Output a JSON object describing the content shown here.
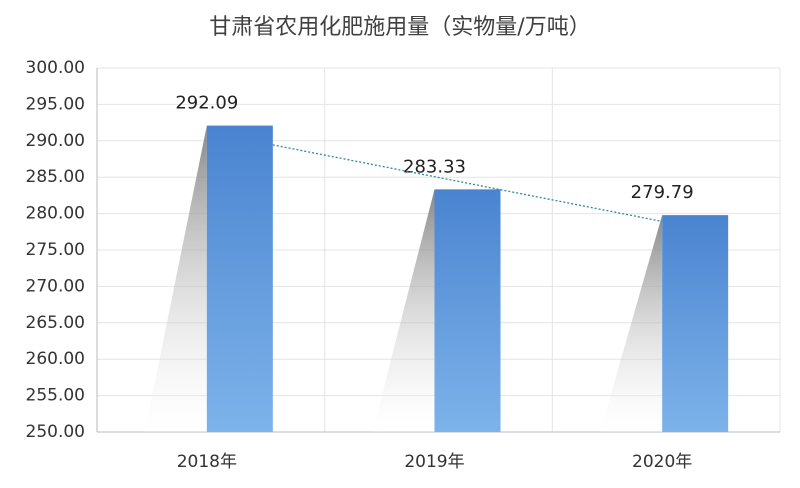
{
  "chart_data": {
    "type": "bar",
    "title": "甘肃省农用化肥施用量（实物量/万吨）",
    "categories": [
      "2018年",
      "2019年",
      "2020年"
    ],
    "values": [
      292.09,
      283.33,
      279.79
    ],
    "color": "#4f8bd6",
    "ylim": [
      250,
      300
    ],
    "yticks": [
      {
        "value": 250,
        "label": "250.00"
      },
      {
        "value": 255,
        "label": "255.00"
      },
      {
        "value": 260,
        "label": "260.00"
      },
      {
        "value": 265,
        "label": "265.00"
      },
      {
        "value": 270,
        "label": "270.00"
      },
      {
        "value": 275,
        "label": "275.00"
      },
      {
        "value": 280,
        "label": "280.00"
      },
      {
        "value": 285,
        "label": "285.00"
      },
      {
        "value": 290,
        "label": "290.00"
      },
      {
        "value": 295,
        "label": "295.00"
      },
      {
        "value": 300,
        "label": "300.00"
      }
    ],
    "grid": true,
    "trendline": true
  }
}
